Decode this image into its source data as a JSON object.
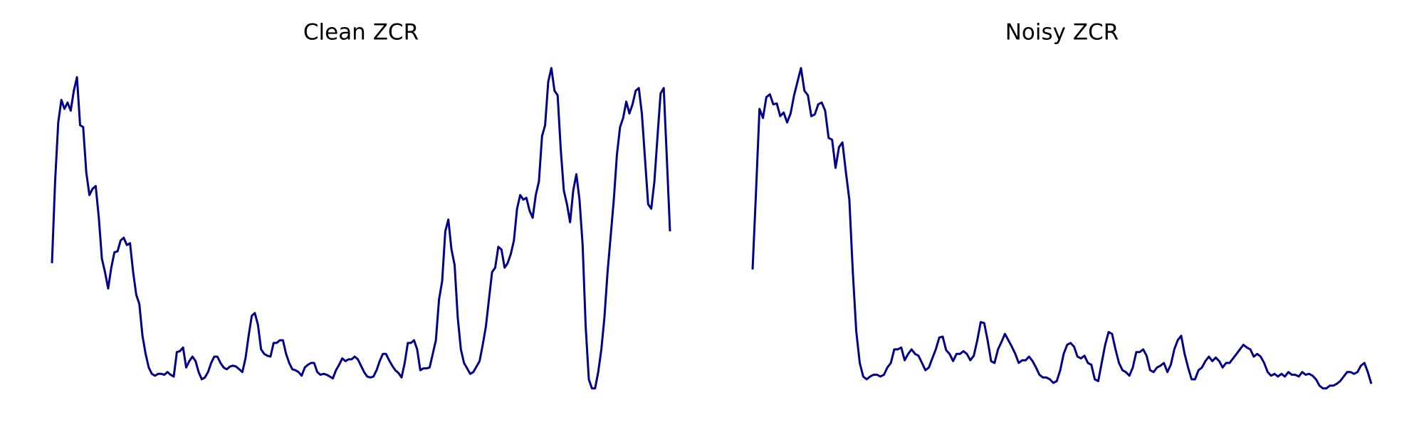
{
  "chart_data": [
    {
      "type": "line",
      "title": "Clean ZCR",
      "color": "#00008b",
      "ylim": [
        0,
        440
      ],
      "values": [
        150,
        240,
        305,
        330,
        320,
        327,
        318,
        340,
        355,
        302,
        300,
        250,
        225,
        232,
        235,
        200,
        155,
        140,
        122,
        145,
        162,
        163,
        175,
        178,
        170,
        172,
        140,
        115,
        105,
        70,
        50,
        35,
        28,
        26,
        28,
        28,
        27,
        30,
        27,
        25,
        52,
        53,
        57,
        35,
        42,
        47,
        42,
        30,
        22,
        24,
        30,
        40,
        47,
        47,
        40,
        35,
        33,
        36,
        37,
        36,
        33,
        30,
        45,
        70,
        92,
        95,
        82,
        55,
        50,
        48,
        47,
        62,
        62,
        65,
        65,
        50,
        40,
        33,
        32,
        30,
        26,
        35,
        38,
        40,
        40,
        30,
        27,
        28,
        27,
        25,
        23,
        32,
        38,
        45,
        42,
        44,
        44,
        47,
        44,
        37,
        30,
        25,
        24,
        25,
        32,
        42,
        50,
        50,
        43,
        37,
        32,
        29,
        24,
        40,
        62,
        62,
        65,
        55,
        32,
        34,
        34,
        35,
        50,
        65,
        110,
        130,
        185,
        198,
        165,
        148,
        90,
        55,
        40,
        34,
        28,
        30,
        36,
        42,
        60,
        80,
        110,
        140,
        145,
        168,
        165,
        145,
        150,
        160,
        175,
        210,
        225,
        220,
        222,
        208,
        200,
        225,
        240,
        290,
        302,
        350,
        365,
        340,
        335,
        275,
        230,
        215,
        195,
        230,
        248,
        220,
        170,
        80,
        22,
        12,
        12,
        30,
        55,
        90,
        140,
        180,
        220,
        270,
        300,
        310,
        328,
        315,
        325,
        340,
        343,
        315,
        265,
        215,
        210,
        240,
        290,
        337,
        343,
        265,
        185
      ]
    },
    {
      "type": "line",
      "title": "Noisy ZCR",
      "color": "#00008b",
      "ylim": [
        0,
        440
      ],
      "values": [
        143,
        230,
        320,
        310,
        333,
        336,
        325,
        326,
        312,
        316,
        305,
        315,
        335,
        350,
        365,
        340,
        335,
        312,
        314,
        325,
        327,
        318,
        288,
        286,
        255,
        278,
        283,
        250,
        220,
        140,
        75,
        40,
        25,
        22,
        25,
        27,
        27,
        25,
        27,
        35,
        40,
        55,
        55,
        57,
        43,
        50,
        55,
        50,
        48,
        40,
        32,
        35,
        45,
        55,
        68,
        69,
        54,
        50,
        42,
        50,
        50,
        53,
        50,
        43,
        48,
        65,
        85,
        84,
        65,
        42,
        40,
        55,
        63,
        72,
        65,
        58,
        50,
        40,
        43,
        43,
        47,
        42,
        35,
        27,
        24,
        24,
        22,
        18,
        20,
        32,
        50,
        60,
        62,
        58,
        47,
        45,
        48,
        40,
        38,
        22,
        20,
        40,
        60,
        74,
        72,
        55,
        40,
        32,
        30,
        26,
        35,
        52,
        52,
        55,
        48,
        32,
        30,
        35,
        37,
        40,
        30,
        38,
        55,
        65,
        70,
        50,
        35,
        22,
        22,
        32,
        35,
        42,
        47,
        42,
        46,
        42,
        35,
        40,
        40,
        45,
        50,
        55,
        60,
        57,
        55,
        47,
        50,
        47,
        40,
        30,
        26,
        28,
        25,
        28,
        25,
        30,
        27,
        27,
        25,
        30,
        27,
        28,
        26,
        22,
        15,
        12,
        12,
        15,
        15,
        17,
        20,
        25,
        30,
        30,
        28,
        30,
        37,
        40,
        30,
        17
      ]
    }
  ]
}
